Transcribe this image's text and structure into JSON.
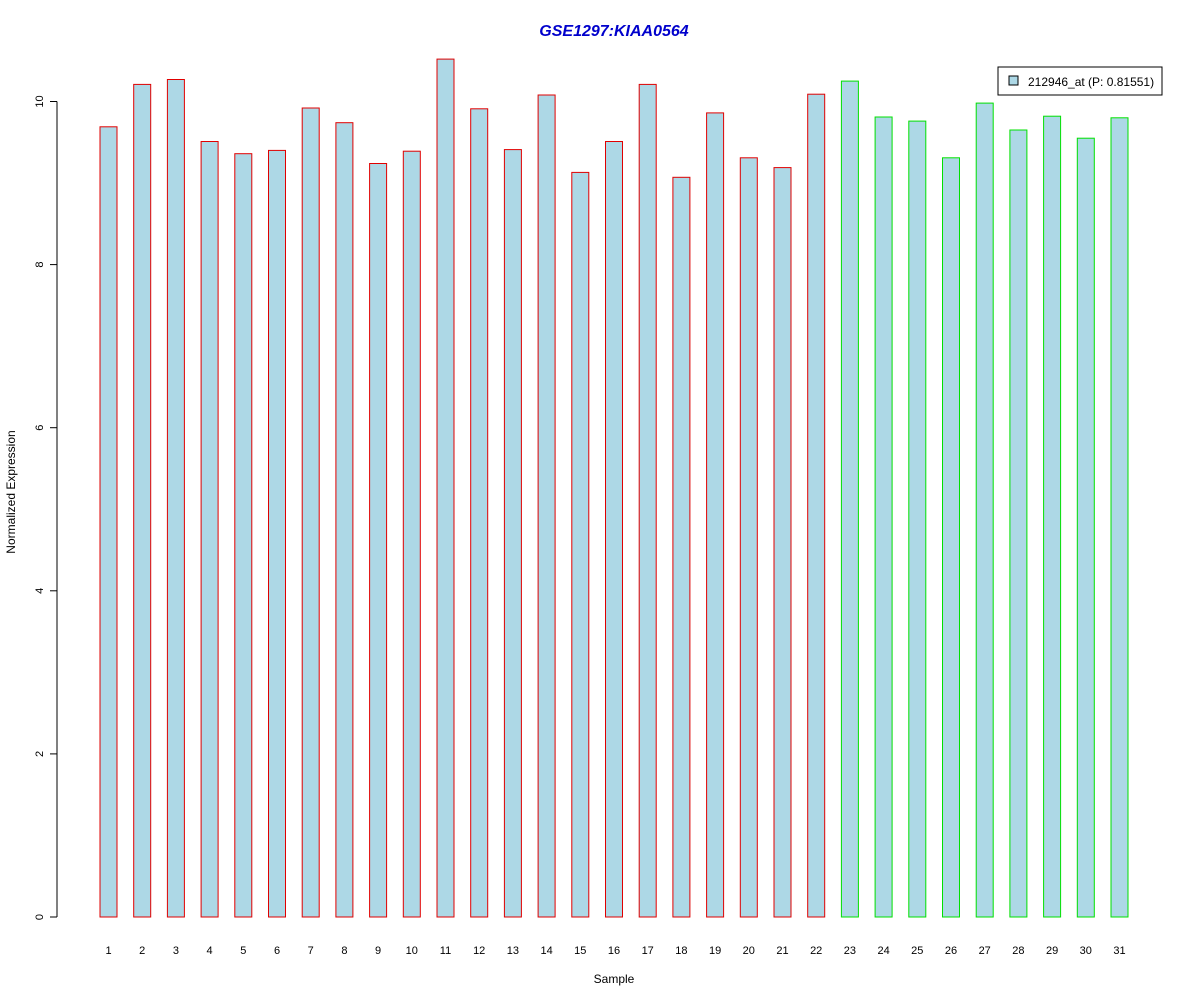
{
  "chart_data": {
    "type": "bar",
    "title": "GSE1297:KIAA0564",
    "xlabel": "Sample",
    "ylabel": "Normalized Expression",
    "categories": [
      "1",
      "2",
      "3",
      "4",
      "5",
      "6",
      "7",
      "8",
      "9",
      "10",
      "11",
      "12",
      "13",
      "14",
      "15",
      "16",
      "17",
      "18",
      "19",
      "20",
      "21",
      "22",
      "23",
      "24",
      "25",
      "26",
      "27",
      "28",
      "29",
      "30",
      "31"
    ],
    "series": [
      {
        "name": "212946_at (P: 0.81551)",
        "values": [
          9.69,
          10.21,
          10.27,
          9.51,
          9.36,
          9.4,
          9.92,
          9.74,
          9.24,
          9.39,
          10.52,
          9.91,
          9.41,
          10.08,
          9.13,
          9.51,
          10.21,
          9.07,
          9.86,
          9.31,
          9.19,
          10.09,
          10.25,
          9.81,
          9.76,
          9.31,
          9.98,
          9.65,
          9.82,
          9.55,
          9.8
        ]
      }
    ],
    "groups": [
      {
        "from": 1,
        "to": 22,
        "border_color": "#e00000"
      },
      {
        "from": 23,
        "to": 31,
        "border_color": "#00e000"
      }
    ],
    "ylim": [
      0,
      10.5
    ],
    "yticks": [
      0,
      2,
      4,
      6,
      8,
      10
    ],
    "legend_position": "top-right",
    "grid": false,
    "colors": {
      "bar_fill": "#add8e6",
      "title": "#0000cc",
      "axis": "#000000"
    }
  }
}
